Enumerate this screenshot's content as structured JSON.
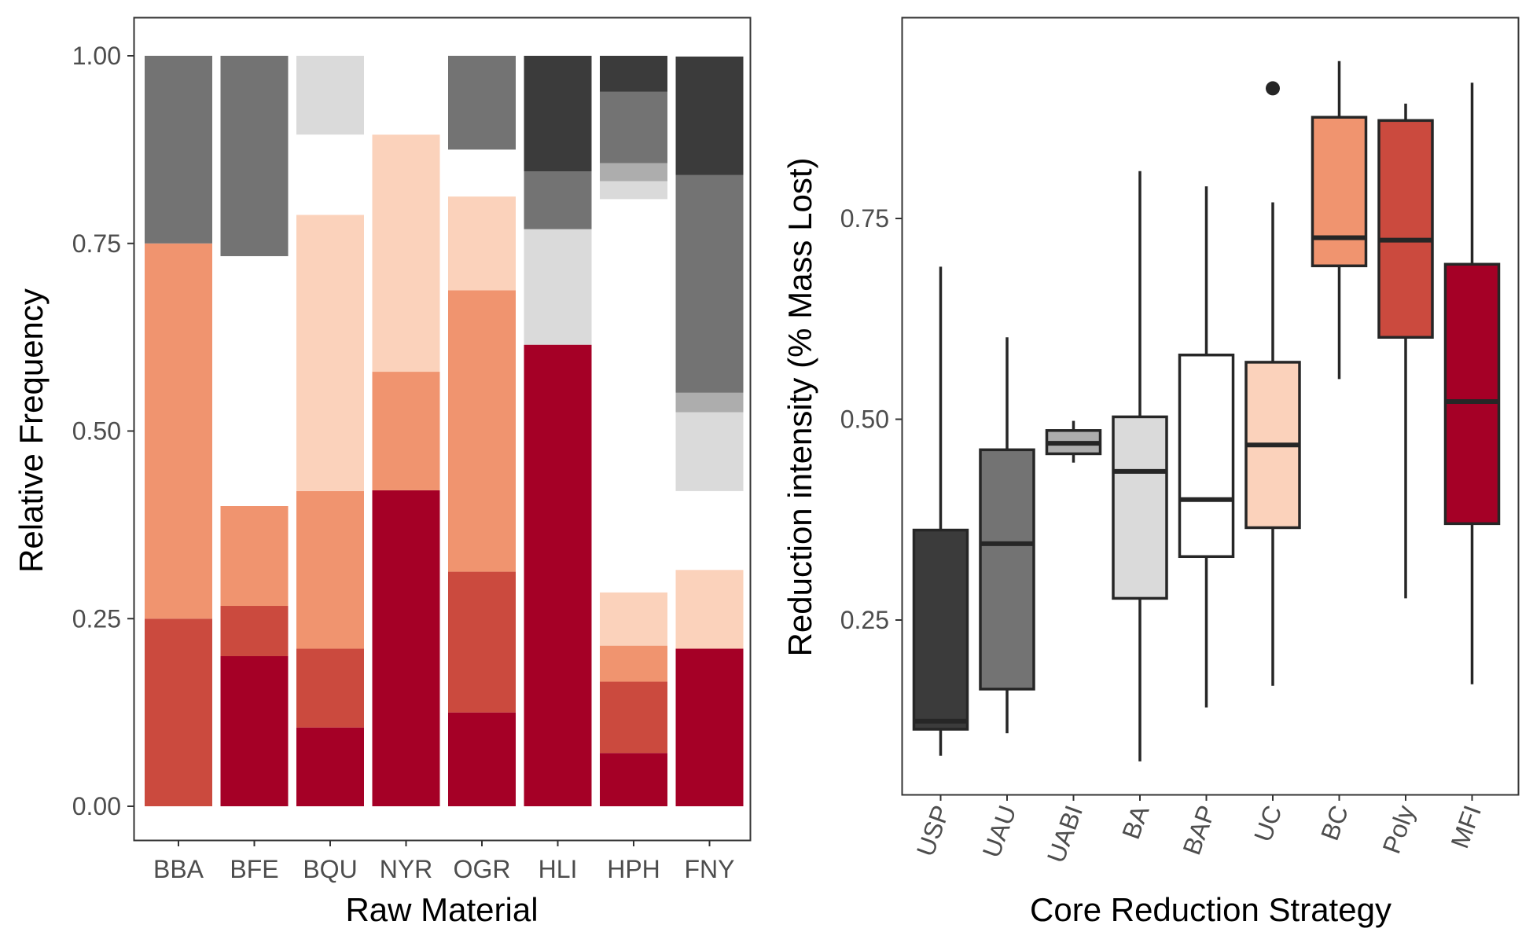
{
  "chart_data": [
    {
      "type": "bar",
      "stacked": true,
      "xlabel": "Raw Material",
      "ylabel": "Relative Frequency",
      "ylim": [
        0,
        1
      ],
      "yticks": [
        "0.00",
        "0.25",
        "0.50",
        "0.75",
        "1.00"
      ],
      "categories": [
        "BBA",
        "BFE",
        "BQU",
        "NYR",
        "OGR",
        "HLI",
        "HPH",
        "FNY"
      ],
      "grid": false,
      "legend": "none",
      "stack_order": [
        "MFI",
        "Poly",
        "BC",
        "UC",
        "BAP",
        "BA",
        "UABI",
        "UAU",
        "USP"
      ],
      "series": [
        {
          "strategy": "MFI",
          "color": "#a50026",
          "values": [
            0,
            0.2,
            0.105,
            0.421,
            0.125,
            0.615,
            0.071,
            0.21
          ]
        },
        {
          "strategy": "Poly",
          "color": "#cb4a3e",
          "values": [
            0.25,
            0.067,
            0.105,
            0,
            0.1875,
            0,
            0.095,
            0
          ]
        },
        {
          "strategy": "BC",
          "color": "#f0946f",
          "values": [
            0.5,
            0.133,
            0.21,
            0.158,
            0.375,
            0,
            0.048,
            0
          ]
        },
        {
          "strategy": "UC",
          "color": "#fbd2bb",
          "values": [
            0,
            0,
            0.368,
            0.316,
            0.125,
            0,
            0.071,
            0.105
          ]
        },
        {
          "strategy": "BAP",
          "color": "#ffffff",
          "values": [
            0,
            0.333,
            0.107,
            0.105,
            0.0625,
            0,
            0.524,
            0.105
          ]
        },
        {
          "strategy": "BA",
          "color": "#dadada",
          "values": [
            0,
            0,
            0.105,
            0,
            0,
            0.154,
            0.024,
            0.105
          ]
        },
        {
          "strategy": "UABI",
          "color": "#adadad",
          "values": [
            0,
            0,
            0,
            0,
            0,
            0,
            0.024,
            0.026
          ]
        },
        {
          "strategy": "UAU",
          "color": "#737373",
          "values": [
            0.25,
            0.267,
            0,
            0,
            0.125,
            0.077,
            0.095,
            0.29
          ]
        },
        {
          "strategy": "USP",
          "color": "#3b3b3b",
          "values": [
            0,
            0,
            0,
            0,
            0,
            0.154,
            0.048,
            0.158
          ]
        }
      ]
    },
    {
      "type": "boxplot",
      "xlabel": "Core Reduction Strategy",
      "ylabel": "Reduction intensity (% Mass Lost)",
      "ylim": [
        0.04,
        1.0
      ],
      "yticks": [
        "0.25",
        "0.50",
        "0.75"
      ],
      "categories": [
        "USP",
        "UAU",
        "UABI",
        "BA",
        "BAP",
        "UC",
        "BC",
        "Poly",
        "MFI"
      ],
      "grid": false,
      "legend": "none",
      "boxes": [
        {
          "label": "USP",
          "color": "#3b3b3b",
          "whisker_low": 0.081,
          "q1": 0.114,
          "median": 0.124,
          "q3": 0.362,
          "whisker_high": 0.69,
          "outliers": []
        },
        {
          "label": "UAU",
          "color": "#737373",
          "whisker_low": 0.109,
          "q1": 0.164,
          "median": 0.345,
          "q3": 0.462,
          "whisker_high": 0.602,
          "outliers": []
        },
        {
          "label": "UABI",
          "color": "#adadad",
          "whisker_low": 0.446,
          "q1": 0.457,
          "median": 0.47,
          "q3": 0.486,
          "whisker_high": 0.498,
          "outliers": []
        },
        {
          "label": "BA",
          "color": "#dadada",
          "whisker_low": 0.074,
          "q1": 0.277,
          "median": 0.435,
          "q3": 0.503,
          "whisker_high": 0.809,
          "outliers": []
        },
        {
          "label": "BAP",
          "color": "#ffffff",
          "whisker_low": 0.141,
          "q1": 0.329,
          "median": 0.4,
          "q3": 0.58,
          "whisker_high": 0.79,
          "outliers": []
        },
        {
          "label": "UC",
          "color": "#fbd2bb",
          "whisker_low": 0.168,
          "q1": 0.365,
          "median": 0.468,
          "q3": 0.571,
          "whisker_high": 0.77,
          "outliers": [
            0.912
          ]
        },
        {
          "label": "BC",
          "color": "#f0946f",
          "whisker_low": 0.55,
          "q1": 0.691,
          "median": 0.726,
          "q3": 0.876,
          "whisker_high": 0.946,
          "outliers": []
        },
        {
          "label": "Poly",
          "color": "#cb4a3e",
          "whisker_low": 0.277,
          "q1": 0.602,
          "median": 0.723,
          "q3": 0.872,
          "whisker_high": 0.893,
          "outliers": []
        },
        {
          "label": "MFI",
          "color": "#a50026",
          "whisker_low": 0.17,
          "q1": 0.37,
          "median": 0.522,
          "q3": 0.693,
          "whisker_high": 0.919,
          "outliers": []
        }
      ]
    }
  ]
}
